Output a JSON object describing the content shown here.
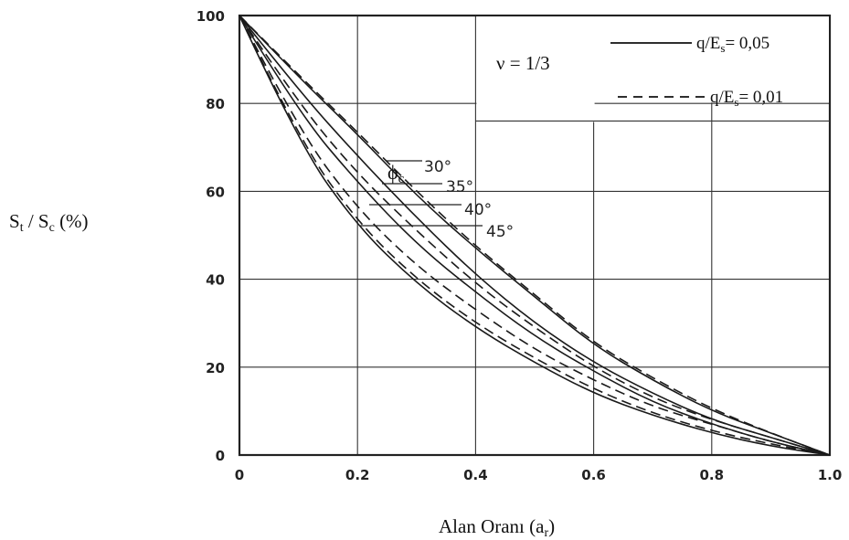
{
  "chart_data": {
    "type": "line",
    "title": "",
    "xlabel": "Alan Oranı (a",
    "xlabel_sub": "r",
    "xlabel_end": ")",
    "ylabel_parts": {
      "s1": "S",
      "sub1": "t",
      "mid": " / S",
      "sub2": "c",
      "end": " (%)"
    },
    "xlim": [
      0,
      1.0
    ],
    "ylim": [
      0,
      100
    ],
    "x_ticks": [
      "0",
      "0.2",
      "0.4",
      "0.6",
      "0.8",
      "1.0"
    ],
    "y_ticks": [
      "0",
      "20",
      "40",
      "60",
      "80",
      "100"
    ],
    "grid": true,
    "annotation_nu": "ν = 1/3",
    "legend": {
      "placement": "top-right",
      "items": [
        {
          "style": "solid",
          "label_pre": "q/E",
          "label_sub": "s",
          "label_post": "= 0,05"
        },
        {
          "style": "dashed",
          "label_pre": "q/E",
          "label_sub": "s",
          "label_post": "= 0,01"
        }
      ]
    },
    "phi_symbol": "ϕ",
    "phi_sub": "c",
    "series": [
      {
        "phi": "30°",
        "style": "solid",
        "x": [
          0,
          0.1,
          0.2,
          0.3,
          0.4,
          0.5,
          0.6,
          0.7,
          0.8,
          0.9,
          1.0
        ],
        "y": [
          100,
          86,
          73,
          59,
          47,
          36,
          25,
          17,
          10,
          5,
          0
        ]
      },
      {
        "phi": "30°",
        "style": "dashed",
        "x": [
          0,
          0.1,
          0.2,
          0.3,
          0.4,
          0.5,
          0.6,
          0.7,
          0.8,
          0.9,
          1.0
        ],
        "y": [
          100,
          86.5,
          73.5,
          60,
          47.5,
          36.5,
          25.5,
          17.5,
          10.5,
          5,
          0
        ]
      },
      {
        "phi": "35°",
        "style": "solid",
        "x": [
          0,
          0.1,
          0.2,
          0.3,
          0.4,
          0.5,
          0.6,
          0.7,
          0.8,
          0.9,
          1.0
        ],
        "y": [
          100,
          83,
          68,
          54,
          41,
          30,
          21,
          14,
          8,
          4,
          0
        ]
      },
      {
        "phi": "35°",
        "style": "dashed",
        "x": [
          0,
          0.1,
          0.2,
          0.3,
          0.4,
          0.5,
          0.6,
          0.7,
          0.8,
          0.9,
          1.0
        ],
        "y": [
          100,
          80,
          64,
          51,
          39,
          29,
          20,
          13,
          8,
          4,
          0
        ]
      },
      {
        "phi": "40°",
        "style": "solid",
        "x": [
          0,
          0.1,
          0.2,
          0.3,
          0.4,
          0.5,
          0.6,
          0.7,
          0.8,
          0.9,
          1.0
        ],
        "y": [
          100,
          78,
          62,
          48,
          37,
          27,
          19,
          12,
          7,
          3,
          0
        ]
      },
      {
        "phi": "40°",
        "style": "dashed",
        "x": [
          0,
          0.1,
          0.2,
          0.3,
          0.4,
          0.5,
          0.6,
          0.7,
          0.8,
          0.9,
          1.0
        ],
        "y": [
          100,
          74,
          56,
          43,
          33,
          24,
          17,
          11,
          7,
          3,
          0
        ]
      },
      {
        "phi": "45°",
        "style": "solid",
        "x": [
          0,
          0.1,
          0.2,
          0.3,
          0.4,
          0.5,
          0.6,
          0.7,
          0.8,
          0.9,
          1.0
        ],
        "y": [
          100,
          71,
          52,
          39,
          29,
          21,
          14,
          9,
          5,
          2,
          0
        ]
      },
      {
        "phi": "45°",
        "style": "dashed",
        "x": [
          0,
          0.1,
          0.2,
          0.3,
          0.4,
          0.5,
          0.6,
          0.7,
          0.8,
          0.9,
          1.0
        ],
        "y": [
          100,
          72,
          53,
          40,
          30,
          22,
          15,
          9.5,
          5.5,
          2.5,
          0
        ]
      }
    ],
    "curve_labels": [
      "30°",
      "35°",
      "40°",
      "45°"
    ]
  }
}
